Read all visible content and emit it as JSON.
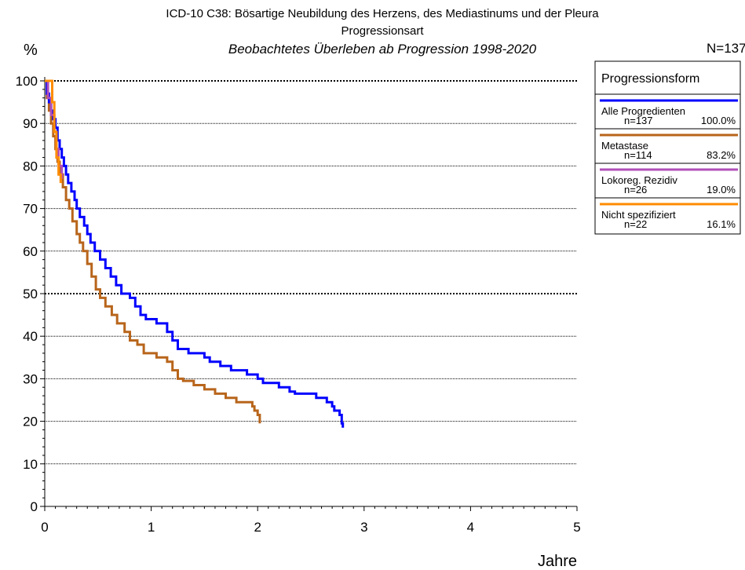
{
  "chart_data": {
    "type": "line",
    "title": "ICD-10 C38: Bösartige Neubildung des Herzens, des Mediastinums und der Pleura",
    "subtitle": "Progressionsart",
    "subtitle2": "Beobachtetes Überleben ab Progression 1998-2020",
    "n_total": "N=137",
    "ylabel": "%",
    "xlabel": "Jahre",
    "xlim": [
      0,
      5
    ],
    "ylim": [
      0,
      100
    ],
    "x_ticks": [
      "0",
      "1",
      "2",
      "3",
      "4",
      "5"
    ],
    "y_ticks": [
      "0",
      "10",
      "20",
      "30",
      "40",
      "50",
      "60",
      "70",
      "80",
      "90",
      "100"
    ],
    "legend_title": "Progressionsform",
    "legend_position": "right",
    "series": [
      {
        "name": "Alle Progredienten",
        "n": "n=137",
        "pct": "100.0%",
        "color": "#0000ff",
        "points": [
          [
            0,
            100
          ],
          [
            0.02,
            97
          ],
          [
            0.04,
            95
          ],
          [
            0.06,
            93
          ],
          [
            0.08,
            91
          ],
          [
            0.1,
            89
          ],
          [
            0.12,
            86
          ],
          [
            0.14,
            84
          ],
          [
            0.16,
            82
          ],
          [
            0.18,
            80
          ],
          [
            0.2,
            78
          ],
          [
            0.22,
            76
          ],
          [
            0.25,
            74
          ],
          [
            0.28,
            72
          ],
          [
            0.3,
            70
          ],
          [
            0.33,
            68
          ],
          [
            0.37,
            66
          ],
          [
            0.4,
            64
          ],
          [
            0.43,
            62
          ],
          [
            0.47,
            60
          ],
          [
            0.52,
            58
          ],
          [
            0.57,
            56
          ],
          [
            0.62,
            54
          ],
          [
            0.67,
            52
          ],
          [
            0.72,
            50
          ],
          [
            0.8,
            49
          ],
          [
            0.85,
            47
          ],
          [
            0.9,
            45
          ],
          [
            0.95,
            44
          ],
          [
            1.05,
            43
          ],
          [
            1.15,
            41
          ],
          [
            1.2,
            39
          ],
          [
            1.25,
            37
          ],
          [
            1.35,
            36
          ],
          [
            1.5,
            35
          ],
          [
            1.55,
            34
          ],
          [
            1.65,
            33
          ],
          [
            1.75,
            32
          ],
          [
            1.9,
            31
          ],
          [
            2.0,
            30
          ],
          [
            2.05,
            29
          ],
          [
            2.2,
            28
          ],
          [
            2.3,
            27
          ],
          [
            2.35,
            26.5
          ],
          [
            2.55,
            25.5
          ],
          [
            2.65,
            24.5
          ],
          [
            2.7,
            23.5
          ],
          [
            2.72,
            22.5
          ],
          [
            2.77,
            21.5
          ],
          [
            2.79,
            19.5
          ],
          [
            2.8,
            18.5
          ]
        ]
      },
      {
        "name": "Metastase",
        "n": "n=114",
        "pct": "83.2%",
        "color": "#b8651b",
        "points": [
          [
            0,
            100
          ],
          [
            0.02,
            96
          ],
          [
            0.04,
            93
          ],
          [
            0.06,
            90
          ],
          [
            0.08,
            87
          ],
          [
            0.1,
            84
          ],
          [
            0.12,
            81
          ],
          [
            0.14,
            78
          ],
          [
            0.17,
            75
          ],
          [
            0.2,
            72
          ],
          [
            0.23,
            70
          ],
          [
            0.26,
            67
          ],
          [
            0.3,
            64
          ],
          [
            0.33,
            62
          ],
          [
            0.36,
            60
          ],
          [
            0.4,
            57
          ],
          [
            0.44,
            54
          ],
          [
            0.48,
            51
          ],
          [
            0.52,
            49
          ],
          [
            0.57,
            47
          ],
          [
            0.63,
            45
          ],
          [
            0.68,
            43
          ],
          [
            0.75,
            41
          ],
          [
            0.8,
            39
          ],
          [
            0.87,
            38
          ],
          [
            0.93,
            36
          ],
          [
            1.0,
            36
          ],
          [
            1.05,
            35
          ],
          [
            1.15,
            34
          ],
          [
            1.2,
            32
          ],
          [
            1.25,
            30
          ],
          [
            1.3,
            29.5
          ],
          [
            1.4,
            28.5
          ],
          [
            1.5,
            27.5
          ],
          [
            1.6,
            26.5
          ],
          [
            1.7,
            25.5
          ],
          [
            1.8,
            24.5
          ],
          [
            1.95,
            23.5
          ],
          [
            1.97,
            22.5
          ],
          [
            2.0,
            21.5
          ],
          [
            2.02,
            19.5
          ]
        ]
      },
      {
        "name": "Lokoreg. Rezidiv",
        "n": "n=26",
        "pct": "19.0%",
        "color": "#b050b8",
        "points": [
          [
            0,
            100
          ],
          [
            0.03,
            96
          ],
          [
            0.06,
            92
          ],
          [
            0.09,
            88
          ],
          [
            0.11,
            84
          ],
          [
            0.13,
            80
          ],
          [
            0.16,
            77
          ]
        ]
      },
      {
        "name": "Nicht spezifiziert",
        "n": "n=22",
        "pct": "16.1%",
        "color": "#ff8c00",
        "points": [
          [
            0,
            100
          ],
          [
            0.04,
            100
          ],
          [
            0.07,
            95
          ],
          [
            0.09,
            88
          ],
          [
            0.11,
            82
          ],
          [
            0.13,
            78
          ],
          [
            0.15,
            76
          ]
        ]
      }
    ]
  }
}
